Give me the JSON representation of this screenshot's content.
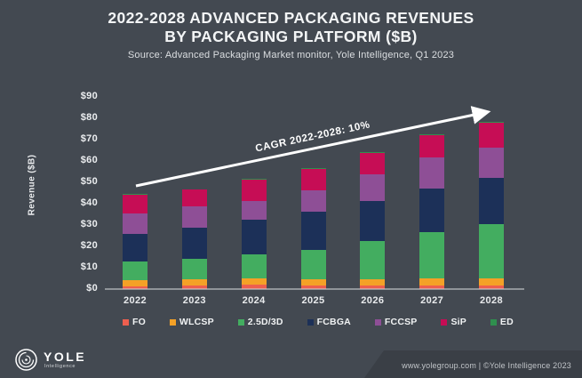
{
  "slide": {
    "title_line1": "2022-2028 ADVANCED PACKAGING REVENUES",
    "title_line2": "BY PACKAGING PLATFORM ($B)",
    "source": "Source: Advanced Packaging Market monitor, Yole Intelligence, Q1 2023",
    "background_color": "#434951",
    "footer": {
      "logo_text": "YOLE",
      "logo_subtext": "Intelligence",
      "copyright": "www.yolegroup.com | ©Yole Intelligence 2023"
    }
  },
  "chart_data": {
    "type": "bar",
    "stacked": true,
    "title": "2022-2028 ADVANCED PACKAGING REVENUES BY PACKAGING PLATFORM ($B)",
    "xlabel": "",
    "ylabel": "Revenue ($B)",
    "ylim": [
      0,
      90
    ],
    "ytick_step": 10,
    "ytick_prefix": "$",
    "grid": false,
    "legend_position": "bottom",
    "categories": [
      "2022",
      "2023",
      "2024",
      "2025",
      "2026",
      "2027",
      "2028"
    ],
    "series": [
      {
        "name": "FO",
        "color": "#ed5f4f",
        "values": [
          1.2,
          1.6,
          1.9,
          1.7,
          1.5,
          1.7,
          1.5
        ]
      },
      {
        "name": "WLCSP",
        "color": "#f4a127",
        "values": [
          2.9,
          2.9,
          3.0,
          2.9,
          3.0,
          3.4,
          3.6
        ]
      },
      {
        "name": "2.5D/3D",
        "color": "#43ad60",
        "values": [
          8.7,
          9.7,
          11.4,
          13.8,
          18.1,
          21.6,
          25.2
        ]
      },
      {
        "name": "FCBGA",
        "color": "#1c3058",
        "values": [
          13.2,
          14.7,
          16.3,
          17.9,
          18.8,
          20.5,
          22.0
        ]
      },
      {
        "name": "FCCSP",
        "color": "#8e4f96",
        "values": [
          9.5,
          9.7,
          8.8,
          10.0,
          12.3,
          14.3,
          14.1
        ]
      },
      {
        "name": "SiP",
        "color": "#c60d55",
        "values": [
          8.8,
          8.2,
          10.0,
          10.0,
          10.1,
          10.6,
          11.6
        ]
      },
      {
        "name": "ED",
        "color": "#2f8f4e",
        "values": [
          0.1,
          0.1,
          0.1,
          0.2,
          0.2,
          0.3,
          0.4
        ]
      }
    ],
    "totals": [
      44.4,
      46.9,
      51.5,
      56.5,
      64.0,
      72.4,
      78.4
    ],
    "annotation": {
      "text": "CAGR 2022-2028: 10%",
      "color": "#ffffff"
    }
  }
}
